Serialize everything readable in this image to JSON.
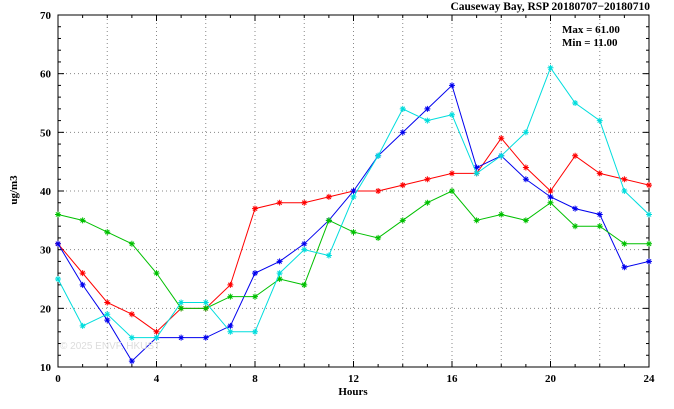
{
  "title": "Causeway Bay, RSP 20180707−20180710",
  "annotations": {
    "max": "Max = 61.00",
    "min": "Min = 11.00"
  },
  "axes": {
    "x_label": "Hours",
    "y_label": "ug/m3"
  },
  "watermark": "© 2025 ENVF, HKUST",
  "chart_data": {
    "type": "line",
    "title": "Causeway Bay, RSP 20180707−20180710",
    "xlabel": "Hours",
    "ylabel": "ug/m3",
    "xlim": [
      0,
      24
    ],
    "ylim": [
      10,
      70
    ],
    "x_major_ticks": [
      0,
      4,
      8,
      12,
      16,
      20,
      24
    ],
    "x_grid_step": 2,
    "x_minor_step": 1,
    "y_major_ticks": [
      10,
      20,
      30,
      40,
      50,
      60,
      70
    ],
    "y_minor_step": 2,
    "grid": true,
    "legend_position": "none",
    "stats": {
      "max": 61.0,
      "min": 11.0
    },
    "x": [
      0,
      1,
      2,
      3,
      4,
      5,
      6,
      7,
      8,
      9,
      10,
      11,
      12,
      13,
      14,
      15,
      16,
      17,
      18,
      19,
      20,
      21,
      22,
      23,
      24
    ],
    "series": [
      {
        "name": "series-red",
        "color": "#ff0000",
        "values": [
          31,
          26,
          21,
          19,
          16,
          20,
          20,
          24,
          37,
          38,
          38,
          39,
          40,
          40,
          41,
          42,
          43,
          43,
          49,
          44,
          40,
          46,
          43,
          42,
          41
        ]
      },
      {
        "name": "series-blue",
        "color": "#0000ee",
        "values": [
          31,
          24,
          18,
          11,
          15,
          15,
          15,
          17,
          26,
          28,
          31,
          35,
          40,
          46,
          50,
          54,
          58,
          44,
          46,
          42,
          39,
          37,
          36,
          27,
          28
        ]
      },
      {
        "name": "series-green",
        "color": "#00c000",
        "values": [
          36,
          35,
          33,
          31,
          26,
          20,
          20,
          22,
          22,
          25,
          24,
          35,
          33,
          32,
          35,
          38,
          40,
          35,
          36,
          35,
          38,
          34,
          34,
          31,
          31
        ]
      },
      {
        "name": "series-cyan",
        "color": "#00dddd",
        "values": [
          25,
          17,
          19,
          15,
          15,
          21,
          21,
          16,
          16,
          26,
          30,
          29,
          39,
          46,
          54,
          52,
          53,
          43,
          46,
          50,
          61,
          55,
          52,
          40,
          36
        ]
      }
    ]
  }
}
